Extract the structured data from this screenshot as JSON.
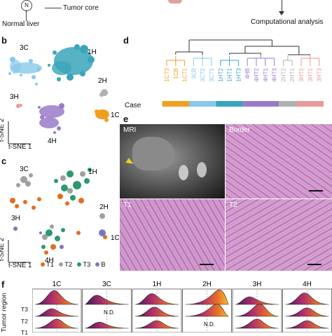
{
  "top": {
    "normal_liver": "Normal liver",
    "tumor_core": "Tumor core",
    "computational_analysis": "Computational analysis",
    "node_letter": "N"
  },
  "panel_b": {
    "letter": "b",
    "clusters": [
      {
        "label": "3C",
        "color": "#88c8e8"
      },
      {
        "label": "1H",
        "color": "#3aa5b8"
      },
      {
        "label": "2H",
        "color": "#b0b0b0"
      },
      {
        "label": "3H",
        "color": "#e89a9a"
      },
      {
        "label": "1C",
        "color": "#f0a020"
      },
      {
        "label": "4H",
        "color": "#9a7ac8"
      }
    ],
    "xlabel": "t-SNE 1",
    "ylabel": "t-SNE 2"
  },
  "panel_c": {
    "letter": "c",
    "clusters": [
      "3C",
      "1H",
      "2H",
      "3H",
      "1C",
      "4H"
    ],
    "xlabel": "t-SNE 1",
    "ylabel": "t-SNE 2",
    "legend": [
      {
        "label": "T1",
        "color": "#e07020"
      },
      {
        "label": "T2",
        "color": "#a0a0a0"
      },
      {
        "label": "T3",
        "color": "#2a9a6a"
      },
      {
        "label": "B",
        "color": "#7a78c0"
      }
    ]
  },
  "panel_d": {
    "letter": "d",
    "leaves": [
      "1CT3",
      "1CB",
      "1CT1",
      "3CB",
      "3CT2",
      "3CT1",
      "1HT2",
      "1HT1",
      "1HT3",
      "4HB",
      "4HT2",
      "4HT1",
      "4HT3",
      "2HT2",
      "2HT1",
      "3HT2",
      "3HT1",
      "3HT3"
    ],
    "case_label": "Case",
    "case_colors": [
      "#f0a020",
      "#88c8e8",
      "#3aa5b8",
      "#9a7ac8",
      "#b0b0b0",
      "#e89a9a"
    ]
  },
  "panel_e": {
    "letter": "e",
    "tiles": [
      {
        "label": "MRI"
      },
      {
        "label": "Border"
      },
      {
        "label": "T1"
      },
      {
        "label": "T2"
      }
    ]
  },
  "panel_f": {
    "letter": "f",
    "columns": [
      "1C",
      "3C",
      "1H",
      "2H",
      "3H",
      "4H"
    ],
    "row_axis_label": "Tumor region",
    "rows": [
      "T3",
      "T2",
      "T1"
    ],
    "nd": "N.D."
  }
}
